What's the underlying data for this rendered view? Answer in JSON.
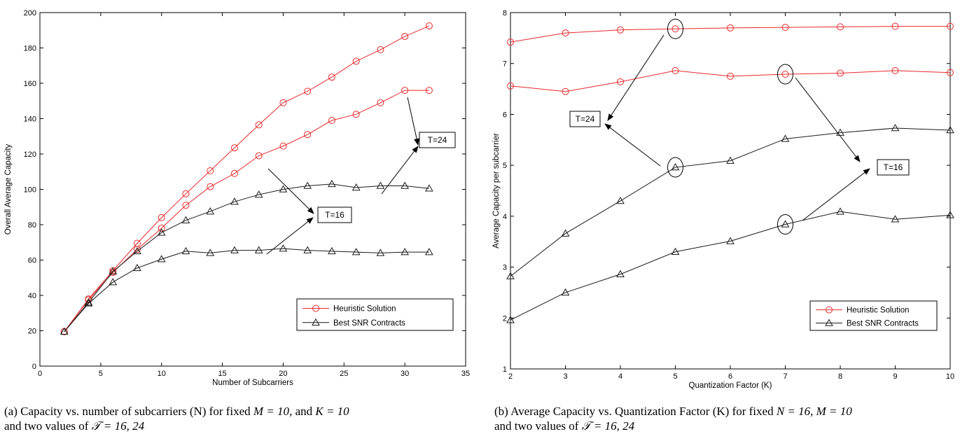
{
  "chart_data": [
    {
      "type": "line",
      "xlabel": "Number of Subcarriers",
      "ylabel": "Overall Average Capacity",
      "xlim": [
        0,
        35
      ],
      "ylim": [
        0,
        200
      ],
      "xticks": [
        0,
        5,
        10,
        15,
        20,
        25,
        30,
        35
      ],
      "yticks": [
        0,
        20,
        40,
        60,
        80,
        100,
        120,
        140,
        160,
        180,
        200
      ],
      "grid": false,
      "legend_position": "bottom-right",
      "x": [
        2,
        4,
        6,
        8,
        10,
        12,
        14,
        16,
        18,
        20,
        22,
        24,
        26,
        28,
        30,
        32
      ],
      "series": [
        {
          "name": "Heuristic Solution",
          "group": "T=24",
          "marker": "circle",
          "color": "#e8292b",
          "values": [
            19.5,
            38,
            54,
            69.5,
            84,
            97.5,
            110.5,
            123.5,
            136.5,
            149,
            155.5,
            163.5,
            172.5,
            179,
            186.5,
            192.5
          ]
        },
        {
          "name": "Heuristic Solution",
          "group": "T=16",
          "marker": "circle",
          "color": "#e8292b",
          "values": [
            19.5,
            37.5,
            53,
            66,
            78,
            91,
            101.5,
            109,
            119,
            124.5,
            131,
            139,
            142.5,
            149,
            156,
            156
          ]
        },
        {
          "name": "Best SNR Contracts",
          "group": "T=24",
          "marker": "triangle",
          "color": "#1a1a1a",
          "values": [
            19.5,
            36,
            53.5,
            65,
            75.5,
            82.5,
            87.5,
            93,
            97,
            100,
            102,
            103,
            101,
            102,
            102,
            100.5
          ]
        },
        {
          "name": "Best SNR Contracts",
          "group": "T=16",
          "marker": "triangle",
          "color": "#1a1a1a",
          "values": [
            19.5,
            35.5,
            47.5,
            55.5,
            60.5,
            65,
            64,
            65.5,
            65.5,
            66.5,
            65.5,
            65,
            64.5,
            64,
            64.5,
            64.5
          ]
        }
      ],
      "legend": [
        "Heuristic Solution",
        "Best SNR Contracts"
      ],
      "annotations": [
        {
          "text": "T=24",
          "points_to_x": 31.8,
          "points_to_y": 133
        },
        {
          "text": "T=16",
          "points_to_x": 22,
          "points_to_y": 87
        }
      ]
    },
    {
      "type": "line",
      "xlabel": "Quantization Factor (K)",
      "ylabel": "Average Capacity per subcarrier",
      "xlim": [
        2,
        10
      ],
      "ylim": [
        1,
        8
      ],
      "xticks": [
        2,
        3,
        4,
        5,
        6,
        7,
        8,
        9,
        10
      ],
      "yticks": [
        1,
        2,
        3,
        4,
        5,
        6,
        7,
        8
      ],
      "grid": false,
      "legend_position": "bottom-right",
      "x": [
        2,
        3,
        4,
        5,
        6,
        7,
        8,
        9,
        10
      ],
      "series": [
        {
          "name": "Heuristic Solution",
          "group": "T=24",
          "marker": "circle",
          "color": "#e8292b",
          "values": [
            7.42,
            7.6,
            7.66,
            7.68,
            7.7,
            7.71,
            7.72,
            7.73,
            7.73
          ]
        },
        {
          "name": "Heuristic Solution",
          "group": "T=16",
          "marker": "circle",
          "color": "#e8292b",
          "values": [
            6.56,
            6.45,
            6.64,
            6.86,
            6.75,
            6.79,
            6.81,
            6.86,
            6.82
          ]
        },
        {
          "name": "Best SNR Contracts",
          "group": "T=24",
          "marker": "triangle",
          "color": "#1a1a1a",
          "values": [
            2.82,
            3.66,
            4.3,
            4.96,
            5.09,
            5.52,
            5.64,
            5.73,
            5.69
          ]
        },
        {
          "name": "Best SNR Contracts",
          "group": "T=16",
          "marker": "triangle",
          "color": "#1a1a1a",
          "values": [
            1.96,
            2.5,
            2.86,
            3.3,
            3.51,
            3.84,
            4.09,
            3.94,
            4.02
          ]
        }
      ],
      "legend": [
        "Heuristic Solution",
        "Best SNR Contracts"
      ],
      "annotations": [
        {
          "text": "T=24",
          "points_to_x": 4.8,
          "points_to_y": 5.8
        },
        {
          "text": "T=16",
          "points_to_x": 8.6,
          "points_to_y": 4.9
        }
      ]
    }
  ],
  "captions": {
    "a_line1_pre": "(a) Capacity vs. number of subcarriers (N) for fixed ",
    "a_line1_m": "M = 10",
    "a_line1_mid": ", and ",
    "a_line1_k": "K = 10",
    "a_line2_pre": "and two values of ",
    "a_line2_t": "𝒯 = 16, 24",
    "b_line1_pre": "(b) Average Capacity vs. Quantization Factor (K) for fixed ",
    "b_line1_n": "N = 16",
    "b_line1_mid": ", ",
    "b_line1_m": "M = 10",
    "b_line2_pre": "and two values of ",
    "b_line2_t": "𝒯 = 16, 24"
  }
}
